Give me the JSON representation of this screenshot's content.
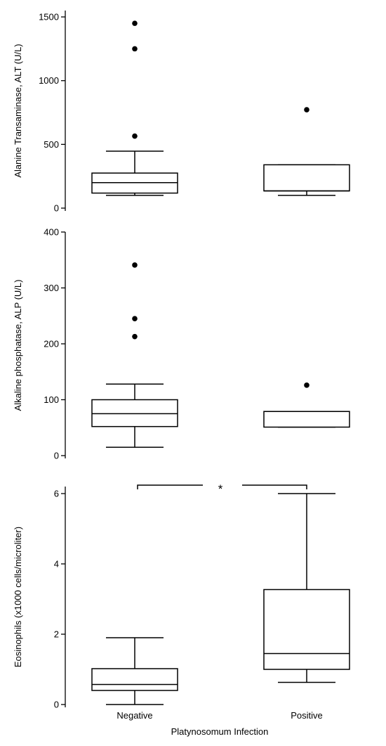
{
  "shared_xlabel": "Platynosomum Infection",
  "chart_data": [
    {
      "type": "box",
      "categories": [
        "Negative",
        "Positive"
      ],
      "ylabel": "Alanine Transaminase, ALT (U/L)",
      "ylim": [
        0,
        1550
      ],
      "yticks": [
        0,
        500,
        1000,
        1500
      ],
      "boxes": [
        {
          "category": "Negative",
          "whisker_low": 100,
          "q1": 118,
          "median": 200,
          "q3": 275,
          "whisker_high": 447,
          "outliers": [
            565,
            1250,
            1450
          ]
        },
        {
          "category": "Positive",
          "whisker_low": 100,
          "q1": 135,
          "median": 135,
          "q3": 340,
          "whisker_high": 340,
          "outliers": [
            772
          ]
        }
      ],
      "significance": null
    },
    {
      "type": "box",
      "categories": [
        "Negative",
        "Positive"
      ],
      "ylabel": "Alkaline phosphatase, ALP (U/L)",
      "ylim": [
        0,
        400
      ],
      "yticks": [
        0,
        100,
        200,
        300,
        400
      ],
      "boxes": [
        {
          "category": "Negative",
          "whisker_low": 15,
          "q1": 52,
          "median": 75,
          "q3": 100,
          "whisker_high": 128,
          "outliers": [
            213,
            245,
            341
          ]
        },
        {
          "category": "Positive",
          "whisker_low": 51,
          "q1": 51,
          "median": 79,
          "q3": 79,
          "whisker_high": 79,
          "outliers": [
            126
          ]
        }
      ],
      "significance": null
    },
    {
      "type": "box",
      "categories": [
        "Negative",
        "Positive"
      ],
      "ylabel": "Eosinophils (x1000 cells/microliter)",
      "ylim": [
        0,
        6.2
      ],
      "yticks": [
        0,
        2,
        4,
        6
      ],
      "boxes": [
        {
          "category": "Negative",
          "whisker_low": 0,
          "q1": 0.4,
          "median": 0.57,
          "q3": 1.02,
          "whisker_high": 1.9,
          "outliers": []
        },
        {
          "category": "Positive",
          "whisker_low": 0.63,
          "q1": 1.0,
          "median": 1.45,
          "q3": 3.27,
          "whisker_high": 6.0,
          "outliers": []
        }
      ],
      "significance": {
        "label": "*",
        "between": [
          "Negative",
          "Positive"
        ]
      }
    }
  ]
}
